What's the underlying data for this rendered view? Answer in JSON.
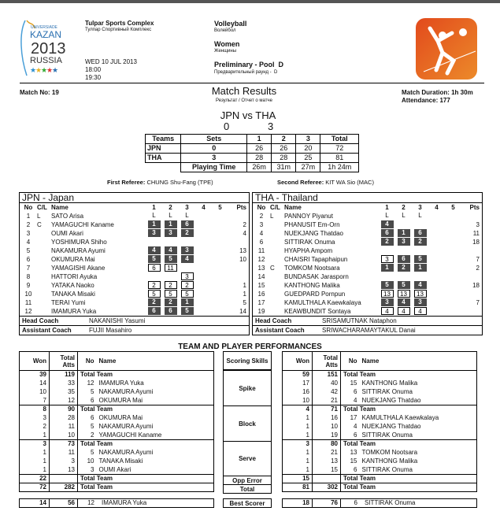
{
  "header": {
    "logo_text": [
      "UNIVERSIADE",
      "KAZAN",
      "2013",
      "RUSSIA"
    ],
    "venue": "Tulpar Sports Complex",
    "venue_ru": "Тулпар Спортивный Комплекс",
    "date": "WED 10 JUL 2013",
    "time_start": "18:00",
    "time_end": "19:30",
    "sport": "Volleyball",
    "sport_ru": "Волейбол",
    "gender": "Women",
    "gender_ru": "Женщины",
    "phase": "Preliminary - Pool  D",
    "phase_ru": "Предварительный раунд -  D",
    "brand_color": "#e8521a"
  },
  "match": {
    "number": "Match No: 19",
    "title": "Match Results",
    "subtitle": "Результат / Отчет о матче",
    "duration": "Match Duration: 1h 30m",
    "attendance": "Attendance: 177",
    "team_a": "JPN",
    "vs": "vs",
    "team_b": "THA",
    "sets_a": "0",
    "sets_b": "3"
  },
  "score_table": {
    "headers": [
      "Teams",
      "Sets",
      "1",
      "2",
      "3",
      "Total"
    ],
    "rows": [
      [
        "JPN",
        "0",
        "26",
        "26",
        "20",
        "72"
      ],
      [
        "THA",
        "3",
        "28",
        "28",
        "25",
        "81"
      ]
    ],
    "time": [
      "Playing Time",
      "26m",
      "31m",
      "27m",
      "1h 24m"
    ]
  },
  "referees": {
    "first_label": "First Referee:",
    "first": "CHUNG Shu-Fang (TPE)",
    "second_label": "Second Referee:",
    "second": "KIT WA Sio (MAC)"
  },
  "team_headers": [
    "No",
    "C/L",
    "Name",
    "1",
    "2",
    "3",
    "4",
    "5",
    "Pts"
  ],
  "teams": [
    {
      "title": "JPN - Japan",
      "head_coach_label": "Head Coach",
      "head_coach": "NAKANISHI Yasumi",
      "assistant_label": "Assistant Coach",
      "assistant": "FUJII  Masahiro",
      "players": [
        {
          "no": "1",
          "cl": "L",
          "name": "SATO Arisa",
          "sets": [
            {
              "v": "L",
              "t": "l"
            },
            {
              "v": "L",
              "t": "l"
            },
            {
              "v": "L",
              "t": "l"
            }
          ],
          "pts": ""
        },
        {
          "no": "2",
          "cl": "C",
          "name": "YAMAGUCHI Kaname",
          "sets": [
            {
              "v": "1",
              "t": "s"
            },
            {
              "v": "1",
              "t": "s"
            },
            {
              "v": "6",
              "t": "s"
            }
          ],
          "pts": "2"
        },
        {
          "no": "3",
          "cl": "",
          "name": "OUMI Akari",
          "sets": [
            {
              "v": "3",
              "t": "s"
            },
            {
              "v": "3",
              "t": "s"
            },
            {
              "v": "2",
              "t": "s"
            }
          ],
          "pts": "4"
        },
        {
          "no": "4",
          "cl": "",
          "name": "YOSHIMURA Shiho",
          "sets": [],
          "pts": ""
        },
        {
          "no": "5",
          "cl": "",
          "name": "NAKAMURA Ayumi",
          "sets": [
            {
              "v": "4",
              "t": "s"
            },
            {
              "v": "4",
              "t": "s"
            },
            {
              "v": "3",
              "t": "s"
            }
          ],
          "pts": "13"
        },
        {
          "no": "6",
          "cl": "",
          "name": "OKUMURA Mai",
          "sets": [
            {
              "v": "5",
              "t": "s"
            },
            {
              "v": "5",
              "t": "s"
            },
            {
              "v": "4",
              "t": "s"
            }
          ],
          "pts": "10"
        },
        {
          "no": "7",
          "cl": "",
          "name": "YAMAGISHI Akane",
          "sets": [
            {
              "v": "6",
              "t": "u"
            },
            {
              "v": "11",
              "t": "u"
            }
          ],
          "pts": ""
        },
        {
          "no": "8",
          "cl": "",
          "name": "HATTORI Ayuka",
          "sets": [
            null,
            null,
            {
              "v": "3",
              "t": "u"
            }
          ],
          "pts": ""
        },
        {
          "no": "9",
          "cl": "",
          "name": "YATAKA Naoko",
          "sets": [
            {
              "v": "2",
              "t": "u"
            },
            {
              "v": "2",
              "t": "u"
            },
            {
              "v": "2",
              "t": "u"
            }
          ],
          "pts": "1"
        },
        {
          "no": "10",
          "cl": "",
          "name": "TANAKA Misaki",
          "sets": [
            {
              "v": "5",
              "t": "u"
            },
            {
              "v": "5",
              "t": "u"
            },
            {
              "v": "5",
              "t": "u"
            }
          ],
          "pts": "1"
        },
        {
          "no": "11",
          "cl": "",
          "name": "TERAI Yumi",
          "sets": [
            {
              "v": "2",
              "t": "s"
            },
            {
              "v": "2",
              "t": "s"
            },
            {
              "v": "1",
              "t": "s"
            }
          ],
          "pts": "5"
        },
        {
          "no": "12",
          "cl": "",
          "name": "IMAMURA Yuka",
          "sets": [
            {
              "v": "6",
              "t": "s"
            },
            {
              "v": "6",
              "t": "s"
            },
            {
              "v": "5",
              "t": "s"
            }
          ],
          "pts": "14"
        }
      ]
    },
    {
      "title": "THA - Thailand",
      "head_coach_label": "Head Coach",
      "head_coach": "SRISAMUTNAK Nataphon",
      "assistant_label": "Assistant Coach",
      "assistant": "SRIWACHARAMAYTAKUL Danai",
      "players": [
        {
          "no": "2",
          "cl": "L",
          "name": "PANNOY Piyanut",
          "sets": [
            {
              "v": "L",
              "t": "l"
            },
            {
              "v": "L",
              "t": "l"
            },
            {
              "v": "L",
              "t": "l"
            }
          ],
          "pts": ""
        },
        {
          "no": "3",
          "cl": "",
          "name": "PHANUSIT Em-Orn",
          "sets": [
            {
              "v": "4",
              "t": "s"
            }
          ],
          "pts": "3"
        },
        {
          "no": "4",
          "cl": "",
          "name": "NUEKJANG Thatdao",
          "sets": [
            {
              "v": "6",
              "t": "s"
            },
            {
              "v": "1",
              "t": "s"
            },
            {
              "v": "6",
              "t": "s"
            }
          ],
          "pts": "11"
        },
        {
          "no": "6",
          "cl": "",
          "name": "SITTIRAK Onuma",
          "sets": [
            {
              "v": "2",
              "t": "s"
            },
            {
              "v": "3",
              "t": "s"
            },
            {
              "v": "2",
              "t": "s"
            }
          ],
          "pts": "18"
        },
        {
          "no": "11",
          "cl": "",
          "name": "HYAPHA Ampom",
          "sets": [],
          "pts": ""
        },
        {
          "no": "12",
          "cl": "",
          "name": "CHAISRI Tapaphaipun",
          "sets": [
            {
              "v": "3",
              "t": "u"
            },
            {
              "v": "6",
              "t": "s"
            },
            {
              "v": "5",
              "t": "s"
            }
          ],
          "pts": "7"
        },
        {
          "no": "13",
          "cl": "C",
          "name": "TOMKOM Nootsara",
          "sets": [
            {
              "v": "1",
              "t": "s"
            },
            {
              "v": "2",
              "t": "s"
            },
            {
              "v": "1",
              "t": "s"
            }
          ],
          "pts": "2"
        },
        {
          "no": "14",
          "cl": "",
          "name": "BUNDASAK Jarasporn",
          "sets": [],
          "pts": ""
        },
        {
          "no": "15",
          "cl": "",
          "name": "KANTHONG Malika",
          "sets": [
            {
              "v": "5",
              "t": "s"
            },
            {
              "v": "5",
              "t": "s"
            },
            {
              "v": "4",
              "t": "s"
            }
          ],
          "pts": "18"
        },
        {
          "no": "16",
          "cl": "",
          "name": "GUEDPARD Pornpun",
          "sets": [
            {
              "v": "13",
              "t": "u"
            },
            {
              "v": "13",
              "t": "u"
            },
            {
              "v": "13",
              "t": "u"
            }
          ],
          "pts": ""
        },
        {
          "no": "17",
          "cl": "",
          "name": "KAMULTHALA Kaewkalaya",
          "sets": [
            {
              "v": "3",
              "t": "s"
            },
            {
              "v": "4",
              "t": "s"
            },
            {
              "v": "3",
              "t": "s"
            }
          ],
          "pts": "7"
        },
        {
          "no": "19",
          "cl": "",
          "name": "KEAWBUNDIT Sontaya",
          "sets": [
            {
              "v": "4",
              "t": "u"
            },
            {
              "v": "4",
              "t": "u"
            },
            {
              "v": "4",
              "t": "u"
            }
          ],
          "pts": ""
        }
      ]
    }
  ],
  "performance": {
    "title": "TEAM AND PLAYER PERFORMANCES",
    "headers": {
      "won": "Won",
      "atts": "Total Atts",
      "no": "No",
      "name": "Name",
      "skills": "Scoring Skills"
    },
    "skills": [
      "Spike",
      "Block",
      "Serve",
      "Opp Error",
      "Total"
    ],
    "best_label": "Best Scorer",
    "sides": [
      {
        "groups": [
          [
            [
              "39",
              "119",
              "",
              "Total Team"
            ],
            [
              "14",
              "33",
              "12",
              "IMAMURA Yuka"
            ],
            [
              "10",
              "35",
              "5",
              "NAKAMURA Ayumi"
            ],
            [
              "7",
              "12",
              "6",
              "OKUMURA Mai"
            ]
          ],
          [
            [
              "8",
              "90",
              "",
              "Total Team"
            ],
            [
              "3",
              "28",
              "6",
              "OKUMURA Mai"
            ],
            [
              "2",
              "11",
              "5",
              "NAKAMURA Ayumi"
            ],
            [
              "1",
              "10",
              "2",
              "YAMAGUCHI Kaname"
            ]
          ],
          [
            [
              "3",
              "73",
              "",
              "Total Team"
            ],
            [
              "1",
              "11",
              "5",
              "NAKAMURA Ayumi"
            ],
            [
              "1",
              "3",
              "10",
              "TANAKA Misaki"
            ],
            [
              "1",
              "13",
              "3",
              "OUMI Akari"
            ]
          ],
          [
            [
              "22",
              "",
              "",
              "Total Team"
            ]
          ],
          [
            [
              "72",
              "282",
              "",
              "Total Team"
            ]
          ]
        ],
        "best": [
          "14",
          "56",
          "12",
          "IMAMURA Yuka"
        ]
      },
      {
        "groups": [
          [
            [
              "59",
              "151",
              "",
              "Total Team"
            ],
            [
              "17",
              "40",
              "15",
              "KANTHONG Malika"
            ],
            [
              "16",
              "42",
              "6",
              "SITTIRAK Onuma"
            ],
            [
              "10",
              "21",
              "4",
              "NUEKJANG Thatdao"
            ]
          ],
          [
            [
              "4",
              "71",
              "",
              "Total Team"
            ],
            [
              "1",
              "16",
              "17",
              "KAMULTHALA Kaewkalaya"
            ],
            [
              "1",
              "10",
              "4",
              "NUEKJANG Thatdao"
            ],
            [
              "1",
              "19",
              "6",
              "SITTIRAK Onuma"
            ]
          ],
          [
            [
              "3",
              "80",
              "",
              "Total Team"
            ],
            [
              "1",
              "21",
              "13",
              "TOMKOM Nootsara"
            ],
            [
              "1",
              "13",
              "15",
              "KANTHONG Malika"
            ],
            [
              "1",
              "15",
              "6",
              "SITTIRAK Onuma"
            ]
          ],
          [
            [
              "15",
              "",
              "",
              "Total Team"
            ]
          ],
          [
            [
              "81",
              "302",
              "",
              "Total Team"
            ]
          ]
        ],
        "best": [
          "18",
          "76",
          "6",
          "SITTIRAK Onuma"
        ]
      }
    ]
  }
}
